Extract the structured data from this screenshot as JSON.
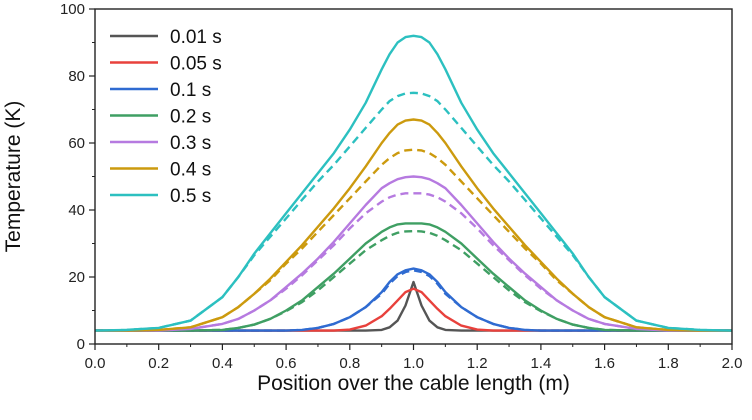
{
  "chart_data": {
    "type": "line",
    "title": "",
    "xlabel": "Position over the cable length (m)",
    "ylabel": "Temperature (K)",
    "xlim": [
      0.0,
      2.0
    ],
    "ylim": [
      0,
      100
    ],
    "xticks": [
      0.0,
      0.2,
      0.4,
      0.6,
      0.8,
      1.0,
      1.2,
      1.4,
      1.6,
      1.8,
      2.0
    ],
    "xtick_labels": [
      "0.0",
      "0.2",
      "0.4",
      "0.6",
      "0.8",
      "1.0",
      "1.2",
      "1.4",
      "1.6",
      "1.8",
      "2.0"
    ],
    "yticks": [
      0,
      20,
      40,
      60,
      80,
      100
    ],
    "ytick_labels": [
      "0",
      "20",
      "40",
      "60",
      "80",
      "100"
    ],
    "grid": false,
    "legend_position": "top-left",
    "x": [
      0.0,
      0.1,
      0.2,
      0.3,
      0.4,
      0.45,
      0.5,
      0.55,
      0.6,
      0.65,
      0.7,
      0.75,
      0.8,
      0.85,
      0.9,
      0.925,
      0.95,
      0.975,
      1.0,
      1.025,
      1.05,
      1.075,
      1.1,
      1.15,
      1.2,
      1.25,
      1.3,
      1.35,
      1.4,
      1.45,
      1.5,
      1.55,
      1.6,
      1.7,
      1.8,
      1.9,
      2.0
    ],
    "series": [
      {
        "name": "0.01 s",
        "color": "#555555",
        "values": [
          4,
          4,
          4,
          4,
          4,
          4,
          4,
          4,
          4,
          4,
          4,
          4,
          4,
          4,
          4.2,
          5,
          7,
          11.5,
          18.5,
          11.5,
          7,
          5,
          4.2,
          4,
          4,
          4,
          4,
          4,
          4,
          4,
          4,
          4,
          4,
          4,
          4,
          4,
          4
        ]
      },
      {
        "name": "0.05 s",
        "color": "#e8413c",
        "values": [
          4,
          4,
          4,
          4,
          4,
          4,
          4,
          4,
          4,
          4,
          4,
          4,
          4.3,
          5.5,
          8.3,
          10.5,
          13,
          15.5,
          16.5,
          15.5,
          13,
          10.5,
          8.3,
          5.5,
          4.3,
          4,
          4,
          4,
          4,
          4,
          4,
          4,
          4,
          4,
          4,
          4,
          4
        ]
      },
      {
        "name": "0.1 s",
        "color": "#2f6bd1",
        "values": [
          4,
          4,
          4,
          4,
          4,
          4,
          4,
          4,
          4,
          4.2,
          4.8,
          6,
          8,
          11,
          15.5,
          18.5,
          20.8,
          22,
          22.5,
          22,
          20.8,
          18.5,
          15.5,
          11,
          8,
          6,
          4.8,
          4.2,
          4,
          4,
          4,
          4,
          4,
          4,
          4,
          4,
          4
        ],
        "dashed_values": [
          4,
          4,
          4,
          4,
          4,
          4,
          4,
          4,
          4,
          4.2,
          4.8,
          6,
          8,
          11,
          15,
          18,
          20.3,
          21.5,
          22,
          21.5,
          20.3,
          18,
          15,
          11,
          8,
          6,
          4.8,
          4.2,
          4,
          4,
          4,
          4,
          4,
          4,
          4,
          4,
          4
        ]
      },
      {
        "name": "0.2 s",
        "color": "#3f9f63",
        "values": [
          4,
          4,
          4,
          4,
          4.2,
          4.8,
          5.8,
          7.5,
          10,
          13,
          17,
          21,
          25.5,
          30,
          33.5,
          34.8,
          35.7,
          36,
          36,
          36,
          35.7,
          34.8,
          33.5,
          30,
          25.5,
          21,
          17,
          13,
          10,
          7.5,
          5.8,
          4.8,
          4.2,
          4,
          4,
          4,
          4
        ],
        "dashed_values": [
          4,
          4,
          4,
          4,
          4.2,
          4.8,
          5.8,
          7.5,
          9.8,
          12.5,
          16,
          20,
          24,
          28,
          31,
          32.3,
          33.2,
          33.6,
          33.7,
          33.6,
          33.2,
          32.3,
          31,
          28,
          24,
          20,
          16,
          12.5,
          9.8,
          7.5,
          5.8,
          4.8,
          4.2,
          4,
          4,
          4,
          4
        ]
      },
      {
        "name": "0.3 s",
        "color": "#b67ae0",
        "values": [
          4,
          4,
          4,
          4.5,
          6,
          7.5,
          10,
          13,
          17,
          21,
          25.5,
          30.5,
          36,
          41.5,
          46.5,
          48,
          49.2,
          49.8,
          50,
          49.8,
          49.2,
          48,
          46.5,
          41.5,
          36,
          30.5,
          25.5,
          21,
          17,
          13,
          10,
          7.5,
          6,
          4.5,
          4,
          4,
          4
        ],
        "dashed_values": [
          4,
          4,
          4,
          4.5,
          6,
          7.5,
          10,
          13,
          16.5,
          20.5,
          25,
          29.5,
          34.5,
          39,
          42.5,
          43.8,
          44.6,
          45,
          45,
          45,
          44.6,
          43.8,
          42.5,
          39,
          34.5,
          29.5,
          25,
          20.5,
          16.5,
          13,
          10,
          7.5,
          6,
          4.5,
          4,
          4,
          4
        ]
      },
      {
        "name": "0.4 s",
        "color": "#cc9a0e",
        "values": [
          4,
          4,
          4.2,
          5,
          8,
          11,
          15,
          19.5,
          24.5,
          29.5,
          35,
          40.5,
          46.5,
          53,
          60,
          63,
          65.5,
          66.7,
          67,
          66.7,
          65.5,
          63,
          60,
          53,
          46.5,
          40.5,
          35,
          29.5,
          24.5,
          19.5,
          15,
          11,
          8,
          5,
          4.2,
          4,
          4
        ],
        "dashed_values": [
          4,
          4,
          4.2,
          5,
          8,
          11,
          15,
          19,
          24,
          28.5,
          33.5,
          38.5,
          43.5,
          48.5,
          53.5,
          55.5,
          57,
          57.8,
          58,
          57.8,
          57,
          55.5,
          53.5,
          48.5,
          43.5,
          38.5,
          33.5,
          28.5,
          24,
          19,
          15,
          11,
          8,
          5,
          4.2,
          4,
          4
        ]
      },
      {
        "name": "0.5 s",
        "color": "#2cc0c0",
        "values": [
          4,
          4.2,
          4.8,
          7,
          14,
          20,
          27,
          33,
          39,
          45,
          51,
          57,
          64,
          72,
          82,
          86.5,
          90,
          91.6,
          92,
          91.6,
          90,
          86.5,
          82,
          72,
          64,
          57,
          51,
          45,
          39,
          33,
          27,
          20,
          14,
          7,
          4.8,
          4.2,
          4
        ],
        "dashed_values": [
          4,
          4.2,
          4.8,
          7,
          14,
          20,
          26.5,
          32,
          37.5,
          43,
          48.5,
          53.5,
          59,
          64.5,
          70,
          72.5,
          74,
          74.8,
          75,
          74.8,
          74,
          72.5,
          70,
          64.5,
          59,
          53.5,
          48.5,
          43,
          37.5,
          32,
          26.5,
          20,
          14,
          7,
          4.8,
          4.2,
          4
        ]
      }
    ]
  }
}
